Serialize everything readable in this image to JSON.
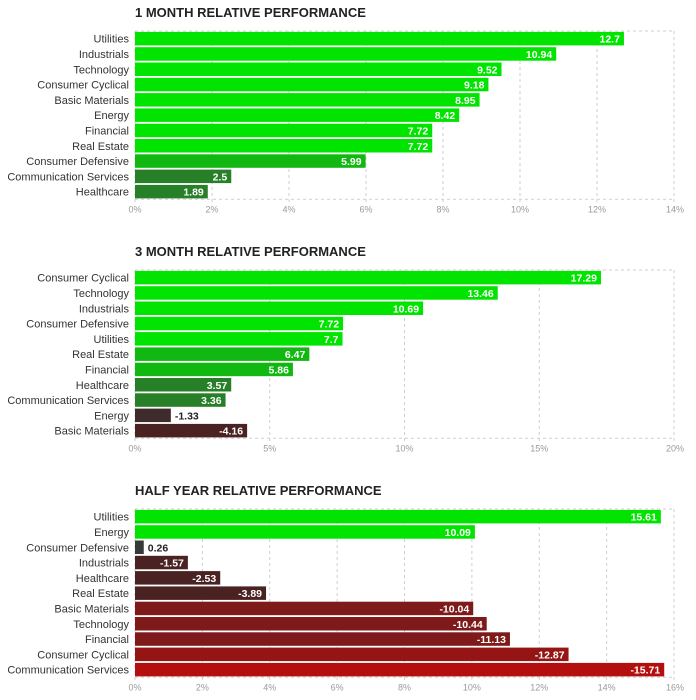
{
  "chart_data": [
    {
      "type": "bar",
      "orientation": "horizontal",
      "title": "1 MONTH RELATIVE PERFORMANCE",
      "categories": [
        "Utilities",
        "Industrials",
        "Technology",
        "Consumer Cyclical",
        "Basic Materials",
        "Energy",
        "Financial",
        "Real Estate",
        "Consumer Defensive",
        "Communication Services",
        "Healthcare"
      ],
      "values": [
        12.7,
        10.94,
        9.52,
        9.18,
        8.95,
        8.42,
        7.72,
        7.72,
        5.99,
        2.5,
        1.89
      ],
      "value_labels": [
        "12.7",
        "10.94",
        "9.52",
        "9.18",
        "8.95",
        "8.42",
        "7.72",
        "7.72",
        "5.99",
        "2.5",
        "1.89"
      ],
      "xlim": [
        0,
        14
      ],
      "ticks": [
        0,
        2,
        4,
        6,
        8,
        10,
        12,
        14
      ],
      "tick_labels": [
        "0%",
        "2%",
        "4%",
        "6%",
        "8%",
        "10%",
        "12%",
        "14%"
      ],
      "grid": true
    },
    {
      "type": "bar",
      "orientation": "horizontal",
      "title": "3 MONTH RELATIVE PERFORMANCE",
      "categories": [
        "Consumer Cyclical",
        "Technology",
        "Industrials",
        "Consumer Defensive",
        "Utilities",
        "Real Estate",
        "Financial",
        "Healthcare",
        "Communication Services",
        "Energy",
        "Basic Materials"
      ],
      "values": [
        17.29,
        13.46,
        10.69,
        7.72,
        7.7,
        6.47,
        5.86,
        3.57,
        3.36,
        -1.33,
        -4.16
      ],
      "value_labels": [
        "17.29",
        "13.46",
        "10.69",
        "7.72",
        "7.7",
        "6.47",
        "5.86",
        "3.57",
        "3.36",
        "-1.33",
        "-4.16"
      ],
      "xlim": [
        0,
        20
      ],
      "ticks": [
        0,
        5,
        10,
        15,
        20
      ],
      "tick_labels": [
        "0%",
        "5%",
        "10%",
        "15%",
        "20%"
      ],
      "grid": true
    },
    {
      "type": "bar",
      "orientation": "horizontal",
      "title": "HALF YEAR RELATIVE PERFORMANCE",
      "categories": [
        "Utilities",
        "Energy",
        "Consumer Defensive",
        "Industrials",
        "Healthcare",
        "Real Estate",
        "Basic Materials",
        "Technology",
        "Financial",
        "Consumer Cyclical",
        "Communication Services"
      ],
      "values": [
        15.61,
        10.09,
        0.26,
        -1.57,
        -2.53,
        -3.89,
        -10.04,
        -10.44,
        -11.13,
        -12.87,
        -15.71
      ],
      "value_labels": [
        "15.61",
        "10.09",
        "0.26",
        "-1.57",
        "-2.53",
        "-3.89",
        "-10.04",
        "-10.44",
        "-11.13",
        "-12.87",
        "-15.71"
      ],
      "xlim": [
        0,
        16
      ],
      "ticks": [
        0,
        2,
        4,
        6,
        8,
        10,
        12,
        14,
        16
      ],
      "tick_labels": [
        "0%",
        "2%",
        "4%",
        "6%",
        "8%",
        "10%",
        "12%",
        "14%",
        "16%"
      ],
      "grid": true
    }
  ]
}
